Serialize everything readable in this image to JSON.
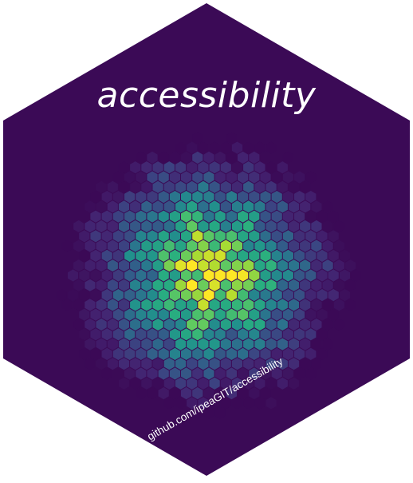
{
  "sticker": {
    "title": "accessibility",
    "url": "github.com/ipeaGIT/accessibility",
    "border_color": "#ffffff",
    "background_color": "#3b0a56",
    "colormap": "viridis",
    "colormap_colors": [
      "#3b0a56",
      "#472d7b",
      "#3b528b",
      "#2c728e",
      "#21918c",
      "#28ae80",
      "#5ec962",
      "#addc30",
      "#fde725"
    ]
  }
}
